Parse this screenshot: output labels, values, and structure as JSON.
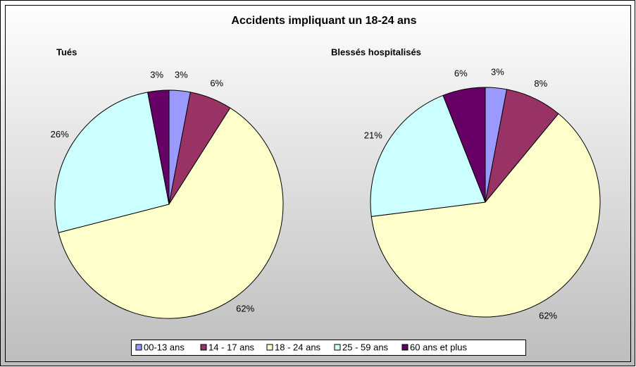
{
  "title": "Accidents impliquant un 18-24 ans",
  "chart_data": [
    {
      "type": "pie",
      "title": "Tués",
      "categories": [
        "00-13 ans",
        "14 - 17 ans",
        "18 - 24 ans",
        "25 - 59 ans",
        "60 ans et plus"
      ],
      "values": [
        3,
        6,
        62,
        26,
        3
      ],
      "value_labels": [
        "3%",
        "6%",
        "62%",
        "26%",
        "3%"
      ],
      "colors": [
        "#9999ff",
        "#993366",
        "#ffffcc",
        "#ccffff",
        "#660066"
      ]
    },
    {
      "type": "pie",
      "title": "Blessés hospitalisés",
      "categories": [
        "00-13 ans",
        "14 - 17 ans",
        "18 - 24 ans",
        "25 - 59 ans",
        "60 ans et plus"
      ],
      "values": [
        3,
        8,
        62,
        21,
        6
      ],
      "value_labels": [
        "3%",
        "8%",
        "62%",
        "21%",
        "6%"
      ],
      "colors": [
        "#9999ff",
        "#993366",
        "#ffffcc",
        "#ccffff",
        "#660066"
      ]
    }
  ]
}
